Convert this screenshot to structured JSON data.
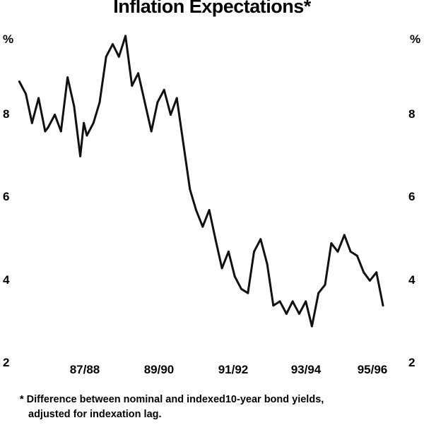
{
  "chart_data": {
    "type": "line",
    "title": "Inflation Expectations*",
    "ylabel_left": "%",
    "ylabel_right": "%",
    "xlabel": "",
    "ylim": [
      2,
      10
    ],
    "yticks": [
      2,
      4,
      6,
      8
    ],
    "x_tick_labels": [
      "87/88",
      "89/90",
      "91/92",
      "93/94",
      "95/96"
    ],
    "grid": false,
    "legend": "none",
    "line_color": "#111111",
    "series": [
      {
        "x": [
          1986.5,
          1986.67,
          1986.83,
          1987.0,
          1987.17,
          1987.25,
          1987.42,
          1987.58,
          1987.75,
          1987.92,
          1988.08,
          1988.17,
          1988.25,
          1988.42,
          1988.58,
          1988.75,
          1988.92,
          1989.08,
          1989.25,
          1989.42,
          1989.58,
          1989.75,
          1989.92,
          1990.08,
          1990.25,
          1990.42,
          1990.58,
          1990.75,
          1990.92,
          1991.08,
          1991.25,
          1991.42,
          1991.58,
          1991.75,
          1991.92,
          1992.08,
          1992.25,
          1992.42,
          1992.58,
          1992.75,
          1992.92,
          1993.08,
          1993.25,
          1993.42,
          1993.58,
          1993.75,
          1993.92,
          1994.08,
          1994.25,
          1994.42,
          1994.58,
          1994.75,
          1994.92,
          1995.08,
          1995.25,
          1995.42,
          1995.58,
          1995.75,
          1995.92
        ],
        "y": [
          8.8,
          8.5,
          7.8,
          8.4,
          7.6,
          7.7,
          8.0,
          7.6,
          8.9,
          8.2,
          7.0,
          7.8,
          7.5,
          7.8,
          8.3,
          9.4,
          9.7,
          9.4,
          9.9,
          8.7,
          9.0,
          8.3,
          7.6,
          8.3,
          8.6,
          8.0,
          8.4,
          7.3,
          6.2,
          5.7,
          5.3,
          5.7,
          5.0,
          4.3,
          4.7,
          4.1,
          3.8,
          3.7,
          4.7,
          5.0,
          4.4,
          3.4,
          3.5,
          3.2,
          3.5,
          3.2,
          3.5,
          2.9,
          3.7,
          3.9,
          4.9,
          4.7,
          5.1,
          4.7,
          4.6,
          4.2,
          4.0,
          4.2,
          3.4
        ]
      }
    ]
  },
  "footnote": {
    "line1": "* Difference between nominal and indexed10-year bond yields,",
    "line2": "adjusted for indexation lag."
  }
}
